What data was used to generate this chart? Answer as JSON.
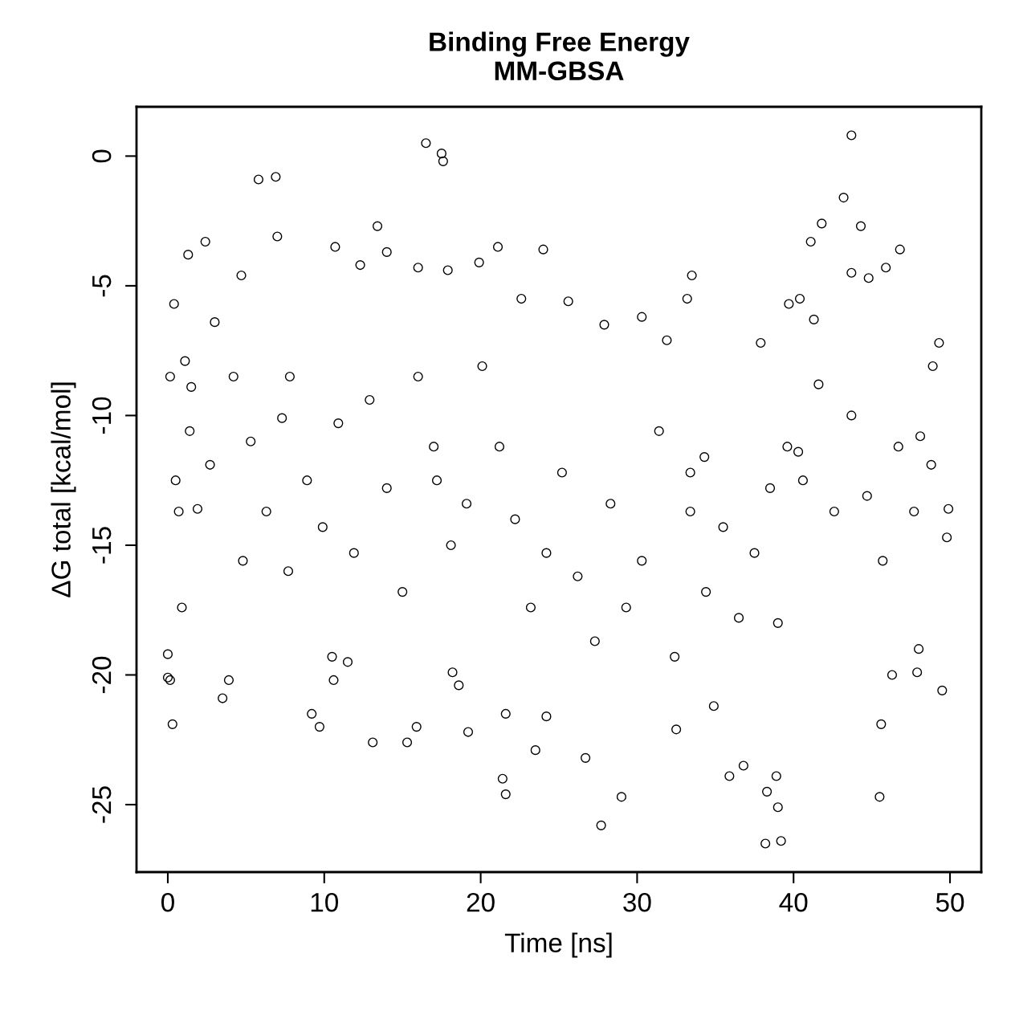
{
  "chart_data": {
    "type": "scatter",
    "title": "Binding Free Energy\nMM-GBSA",
    "xlabel": "Time [ns]",
    "ylabel": "ΔG total [kcal/mol]",
    "xlim": [
      -2,
      52
    ],
    "ylim": [
      -27.6,
      1.9
    ],
    "xticks": [
      0,
      10,
      20,
      30,
      40,
      50
    ],
    "yticks": [
      -25,
      -20,
      -15,
      -10,
      -5,
      0
    ],
    "marker": "circle",
    "grid": false,
    "legend": false,
    "series": [
      {
        "color": "#000000",
        "x": [
          0,
          0,
          0.15,
          0.3,
          0.4,
          0.15,
          0.5,
          0.7,
          0.9,
          1.3,
          1.1,
          1.5,
          1.9,
          2.4,
          3,
          3.5,
          3.9,
          4.7,
          5.8,
          6.9,
          7,
          5.3,
          7.3,
          7.7,
          9.2,
          9.7,
          10.7,
          10.5,
          10.6,
          11.5,
          12.3,
          13.1,
          13.4,
          14,
          15.3,
          15.9,
          16,
          16.5,
          17.5,
          17.6,
          17.9,
          17.2,
          18.2,
          18.6,
          19.2,
          19.9,
          21.1,
          21.4,
          21.6,
          21.6,
          22.6,
          24,
          23.5,
          24.2,
          25.6,
          26.7,
          27.7,
          27.9,
          29,
          30.3,
          31.9,
          33.5,
          33.2,
          32.5,
          34.3,
          33.4,
          34.9,
          35.9,
          36.8,
          37.9,
          38.2,
          39.2,
          39.0,
          38.9,
          38.3,
          39,
          39.7,
          40.4,
          40.3,
          41.3,
          41.8,
          41.1,
          43.2,
          43.7,
          44.3,
          43.7,
          44.8,
          45.9,
          46.8,
          45.5,
          45.6,
          46.3,
          47.9,
          48,
          49.5,
          49.9,
          49.8,
          49.3,
          48.9,
          48.1,
          1.4,
          2.7,
          4.2,
          4.8,
          6.3,
          7.8,
          8.9,
          9.9,
          10.9,
          11.9,
          12.9,
          14,
          15,
          16,
          17,
          18.1,
          19.1,
          20.1,
          21.2,
          22.2,
          23.2,
          24.2,
          25.2,
          26.2,
          27.3,
          28.3,
          29.3,
          30.3,
          31.4,
          32.4,
          33.4,
          34.4,
          35.5,
          36.5,
          37.5,
          38.5,
          39.6,
          40.6,
          41.6,
          42.6,
          43.7,
          44.7,
          45.7,
          46.7,
          47.7,
          48.8
        ],
        "values": [
          -19.2,
          -20.1,
          -20.2,
          -21.9,
          -5.7,
          -8.5,
          -12.5,
          -13.7,
          -17.4,
          -3.8,
          -7.9,
          -8.9,
          -13.6,
          -3.3,
          -6.4,
          -20.9,
          -20.2,
          -4.6,
          -0.9,
          -0.8,
          -3.1,
          -11,
          -10.1,
          -16,
          -21.5,
          -22,
          -3.5,
          -19.3,
          -20.2,
          -19.5,
          -4.2,
          -22.6,
          -2.7,
          -3.7,
          -22.6,
          -22,
          -4.3,
          0.5,
          0.1,
          -0.2,
          -4.4,
          -12.5,
          -19.9,
          -20.4,
          -22.2,
          -4.1,
          -3.5,
          -24,
          -24.6,
          -21.5,
          -5.5,
          -3.6,
          -22.9,
          -21.6,
          -5.6,
          -23.2,
          -25.8,
          -6.5,
          -24.7,
          -6.2,
          -7.1,
          -4.6,
          -5.5,
          -22.1,
          -11.6,
          -12.2,
          -21.2,
          -23.9,
          -23.5,
          -7.2,
          -26.5,
          -26.4,
          -25.1,
          -23.9,
          -24.5,
          -18,
          -5.7,
          -5.5,
          -11.4,
          -6.3,
          -2.6,
          -3.3,
          -1.6,
          0.8,
          -2.7,
          -4.5,
          -4.7,
          -4.3,
          -3.6,
          -24.7,
          -21.9,
          -20,
          -19.9,
          -19,
          -20.6,
          -13.6,
          -14.7,
          -7.2,
          -8.1,
          -10.8,
          -10.6,
          -11.9,
          -8.5,
          -15.6,
          -13.7,
          -8.5,
          -12.5,
          -14.3,
          -10.3,
          -15.3,
          -9.4,
          -12.8,
          -16.8,
          -8.5,
          -11.2,
          -15,
          -13.4,
          -8.1,
          -11.2,
          -14,
          -17.4,
          -15.3,
          -12.2,
          -16.2,
          -18.7,
          -13.4,
          -17.4,
          -15.6,
          -10.6,
          -19.3,
          -13.7,
          -16.8,
          -14.3,
          -17.8,
          -15.3,
          -12.8,
          -11.2,
          -12.5,
          -8.8,
          -13.7,
          -10,
          -13.1,
          -15.6,
          -11.2,
          -13.7,
          -11.9
        ]
      }
    ]
  }
}
